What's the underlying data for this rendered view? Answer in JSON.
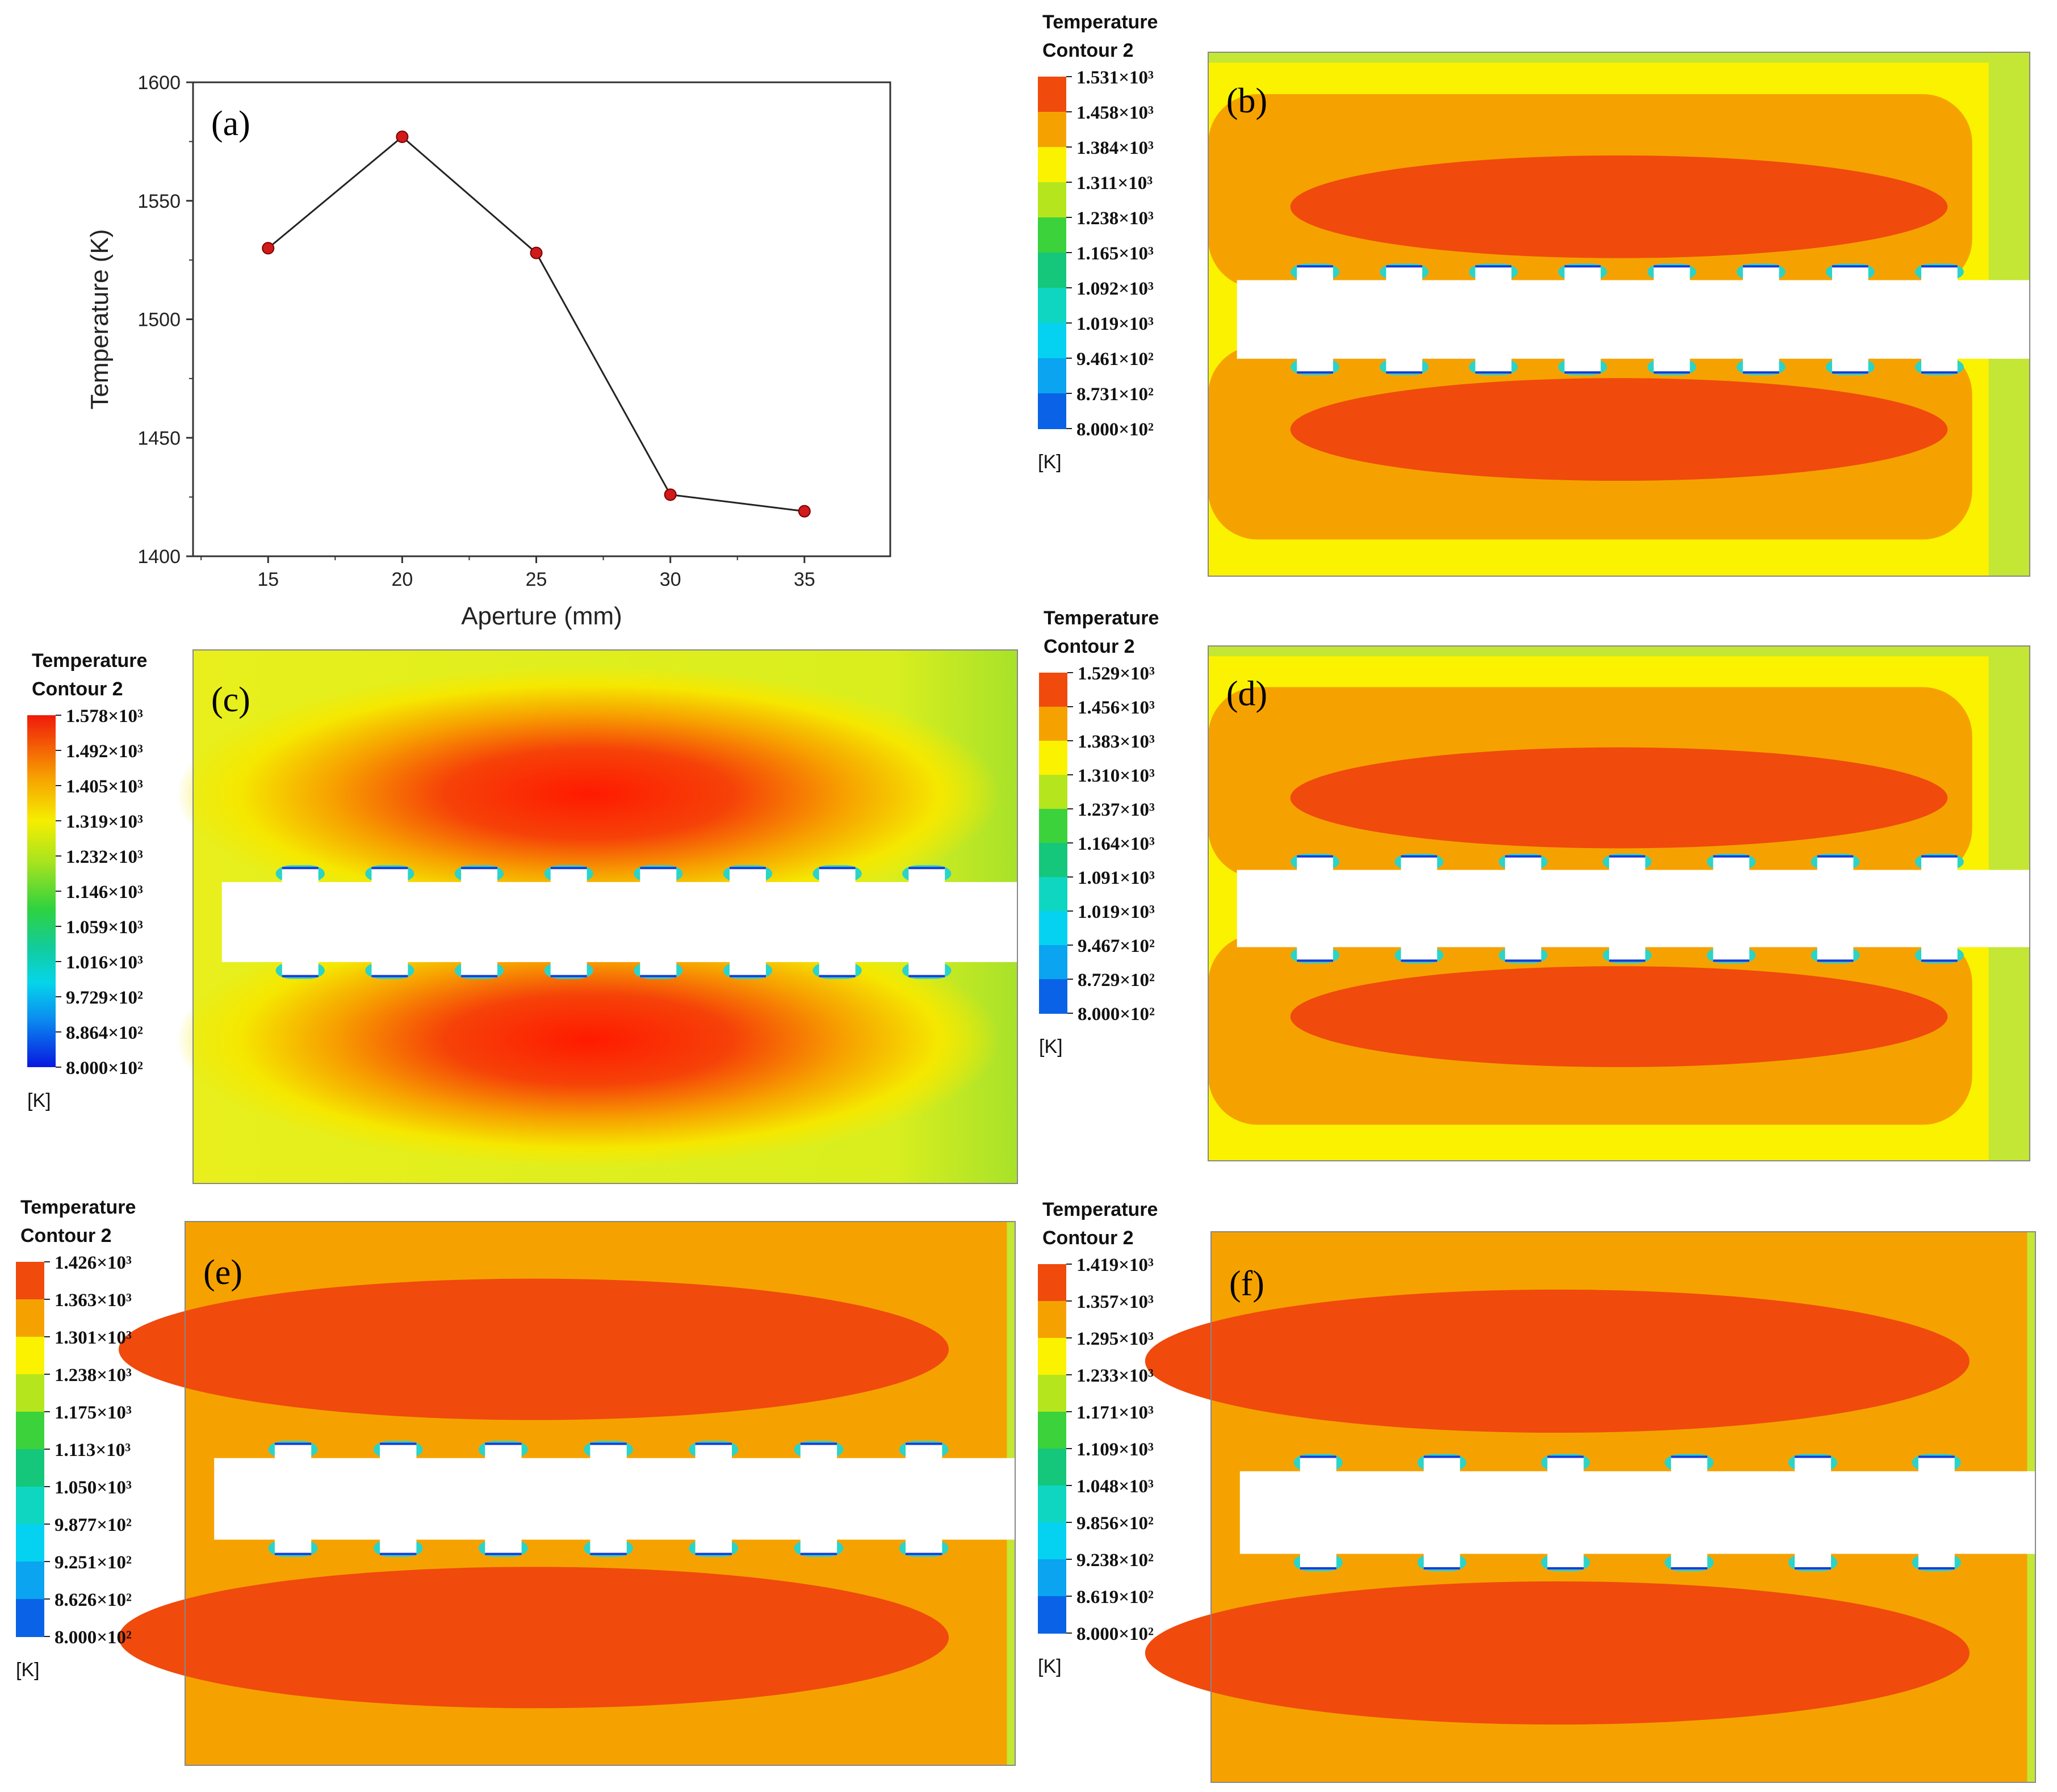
{
  "chart_data": [
    {
      "panel": "(a)",
      "type": "line",
      "xlabel": "Aperture (mm)",
      "ylabel": "Temperature (K)",
      "x": [
        15,
        20,
        25,
        30,
        35
      ],
      "values": [
        1530,
        1577,
        1528,
        1426,
        1419
      ],
      "xticks": [
        "15",
        "20",
        "25",
        "30",
        "35"
      ],
      "yticks": [
        "1400",
        "1450",
        "1500",
        "1550",
        "1600"
      ],
      "xlim": [
        12.2,
        38.2
      ],
      "ylim": [
        1400,
        1600
      ],
      "grid": false,
      "line_color": "#222222",
      "marker_color": "#d11a1a"
    },
    {
      "panel": "(b)",
      "type": "heatmap",
      "legend_title": [
        "Temperature",
        "Contour 2"
      ],
      "unit": "[K]",
      "legend_labels": [
        "1.531×10³",
        "1.458×10³",
        "1.384×10³",
        "1.311×10³",
        "1.238×10³",
        "1.165×10³",
        "1.092×10³",
        "1.019×10³",
        "9.461×10²",
        "8.731×10²",
        "8.000×10²"
      ],
      "max_value": 1531,
      "min_value": 800,
      "style": "banded",
      "holes": 8
    },
    {
      "panel": "(c)",
      "type": "heatmap",
      "legend_title": [
        "Temperature",
        "Contour 2"
      ],
      "unit": "[K]",
      "legend_labels": [
        "1.578×10³",
        "1.492×10³",
        "1.405×10³",
        "1.319×10³",
        "1.232×10³",
        "1.146×10³",
        "1.059×10³",
        "1.016×10³",
        "9.729×10²",
        "8.864×10²",
        "8.000×10²"
      ],
      "max_value": 1578,
      "min_value": 800,
      "style": "smooth",
      "holes": 8
    },
    {
      "panel": "(d)",
      "type": "heatmap",
      "legend_title": [
        "Temperature",
        "Contour 2"
      ],
      "unit": "[K]",
      "legend_labels": [
        "1.529×10³",
        "1.456×10³",
        "1.383×10³",
        "1.310×10³",
        "1.237×10³",
        "1.164×10³",
        "1.091×10³",
        "1.019×10³",
        "9.467×10²",
        "8.729×10²",
        "8.000×10²"
      ],
      "max_value": 1529,
      "min_value": 800,
      "style": "banded",
      "holes": 7
    },
    {
      "panel": "(e)",
      "type": "heatmap",
      "legend_title": [
        "Temperature",
        "Contour 2"
      ],
      "unit": "[K]",
      "legend_labels": [
        "1.426×10³",
        "1.363×10³",
        "1.301×10³",
        "1.238×10³",
        "1.175×10³",
        "1.113×10³",
        "1.050×10³",
        "9.877×10²",
        "9.251×10²",
        "8.626×10²",
        "8.000×10²"
      ],
      "max_value": 1426,
      "min_value": 800,
      "style": "orange",
      "holes": 7
    },
    {
      "panel": "(f)",
      "type": "heatmap",
      "legend_title": [
        "Temperature",
        "Contour 2"
      ],
      "unit": "[K]",
      "legend_labels": [
        "1.419×10³",
        "1.357×10³",
        "1.295×10³",
        "1.233×10³",
        "1.171×10³",
        "1.109×10³",
        "1.048×10³",
        "9.856×10²",
        "9.238×10²",
        "8.619×10²",
        "8.000×10²"
      ],
      "max_value": 1419,
      "min_value": 800,
      "style": "orange",
      "holes": 6
    }
  ],
  "legend_colors": [
    "#f04a0d",
    "#f5a200",
    "#fbf200",
    "#b5e61d",
    "#3cd23c",
    "#14c77a",
    "#0fd6c0",
    "#05d2f0",
    "#0aa4f0",
    "#0a62e6",
    "#0a20e0"
  ],
  "colors": {
    "hot": "#f04a0d",
    "orange": "#f5a200",
    "yellow": "#fbf200",
    "lime": "#c4e634",
    "cold_ring": "#2bd3c8",
    "blue_edge": "#1a3ad8"
  }
}
